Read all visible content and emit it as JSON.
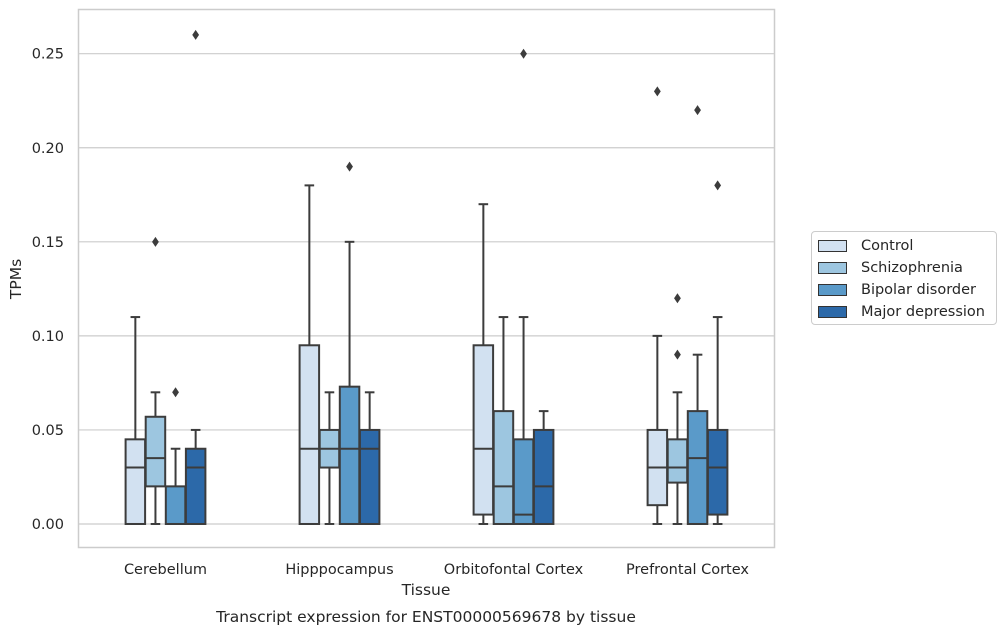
{
  "chart_data": {
    "type": "boxplot",
    "title": "Transcript expression for ENST00000569678 by tissue",
    "xlabel": "Tissue",
    "ylabel": "TPMs",
    "ylim": [
      -0.0125,
      0.2735
    ],
    "yticks": [
      0.0,
      0.05,
      0.1,
      0.15,
      0.2,
      0.25
    ],
    "ytick_labels": [
      "0.00",
      "0.05",
      "0.10",
      "0.15",
      "0.20",
      "0.25"
    ],
    "grid": "horizontal",
    "legend_position": "outside-right",
    "categories": [
      "Cerebellum",
      "Hipppocampus",
      "Orbitofontal Cortex",
      "Prefrontal Cortex"
    ],
    "series": [
      {
        "name": "Control",
        "color": "#d2e1f1",
        "boxes": [
          {
            "q1": 0.0,
            "median": 0.03,
            "q3": 0.045,
            "whisker_low": 0.0,
            "whisker_high": 0.11,
            "outliers": []
          },
          {
            "q1": 0.0,
            "median": 0.04,
            "q3": 0.095,
            "whisker_low": 0.0,
            "whisker_high": 0.18,
            "outliers": []
          },
          {
            "q1": 0.005,
            "median": 0.04,
            "q3": 0.095,
            "whisker_low": 0.0,
            "whisker_high": 0.17,
            "outliers": []
          },
          {
            "q1": 0.01,
            "median": 0.03,
            "q3": 0.05,
            "whisker_low": 0.0,
            "whisker_high": 0.1,
            "outliers": [
              0.23
            ]
          }
        ]
      },
      {
        "name": "Schizophrenia",
        "color": "#9dc6e0",
        "boxes": [
          {
            "q1": 0.02,
            "median": 0.035,
            "q3": 0.057,
            "whisker_low": 0.0,
            "whisker_high": 0.07,
            "outliers": [
              0.15
            ]
          },
          {
            "q1": 0.03,
            "median": 0.04,
            "q3": 0.05,
            "whisker_low": 0.0,
            "whisker_high": 0.07,
            "outliers": []
          },
          {
            "q1": 0.0,
            "median": 0.02,
            "q3": 0.06,
            "whisker_low": 0.0,
            "whisker_high": 0.11,
            "outliers": []
          },
          {
            "q1": 0.022,
            "median": 0.03,
            "q3": 0.045,
            "whisker_low": 0.0,
            "whisker_high": 0.07,
            "outliers": [
              0.09,
              0.12
            ]
          }
        ]
      },
      {
        "name": "Bipolar disorder",
        "color": "#5a9ac9",
        "boxes": [
          {
            "q1": 0.0,
            "median": 0.0,
            "q3": 0.02,
            "whisker_low": 0.0,
            "whisker_high": 0.04,
            "outliers": [
              0.07
            ]
          },
          {
            "q1": 0.0,
            "median": 0.04,
            "q3": 0.073,
            "whisker_low": 0.0,
            "whisker_high": 0.15,
            "outliers": [
              0.19
            ]
          },
          {
            "q1": 0.0,
            "median": 0.005,
            "q3": 0.045,
            "whisker_low": 0.0,
            "whisker_high": 0.11,
            "outliers": [
              0.25
            ]
          },
          {
            "q1": 0.0,
            "median": 0.035,
            "q3": 0.06,
            "whisker_low": 0.0,
            "whisker_high": 0.09,
            "outliers": [
              0.22
            ]
          }
        ]
      },
      {
        "name": "Major depression",
        "color": "#2c69a9",
        "boxes": [
          {
            "q1": 0.0,
            "median": 0.03,
            "q3": 0.04,
            "whisker_low": 0.0,
            "whisker_high": 0.05,
            "outliers": [
              0.26
            ]
          },
          {
            "q1": 0.0,
            "median": 0.04,
            "q3": 0.05,
            "whisker_low": 0.0,
            "whisker_high": 0.07,
            "outliers": []
          },
          {
            "q1": 0.0,
            "median": 0.02,
            "q3": 0.05,
            "whisker_low": 0.0,
            "whisker_high": 0.06,
            "outliers": []
          },
          {
            "q1": 0.005,
            "median": 0.03,
            "q3": 0.05,
            "whisker_low": 0.0,
            "whisker_high": 0.11,
            "outliers": [
              0.18
            ]
          }
        ]
      }
    ]
  }
}
